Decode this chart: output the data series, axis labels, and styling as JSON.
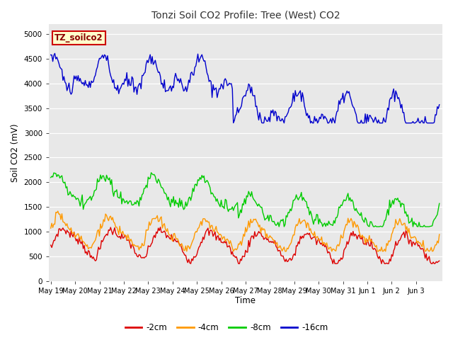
{
  "title": "Tonzi Soil CO2 Profile: Tree (West) CO2",
  "xlabel": "Time",
  "ylabel": "Soil CO2 (mV)",
  "ylim": [
    0,
    5200
  ],
  "yticks": [
    0,
    500,
    1000,
    1500,
    2000,
    2500,
    3000,
    3500,
    4000,
    4500,
    5000
  ],
  "bg_color": "#e8e8e8",
  "box_label": "TZ_soilco2",
  "box_bg": "#ffffcc",
  "box_edge": "#cc0000",
  "legend_labels": [
    "-2cm",
    "-4cm",
    "-8cm",
    "-16cm"
  ],
  "line_colors": [
    "#dd0000",
    "#ff9900",
    "#00cc00",
    "#0000cc"
  ],
  "line_width": 1.0,
  "xtick_labels": [
    "May 19",
    "May 20",
    "May 21",
    "May 22",
    "May 23",
    "May 24",
    "May 25",
    "May 26",
    "May 27",
    "May 28",
    "May 29",
    "May 30",
    "May 31",
    "Jun 1",
    "Jun 2",
    "Jun 3"
  ],
  "figsize": [
    6.4,
    4.8
  ],
  "dpi": 100
}
